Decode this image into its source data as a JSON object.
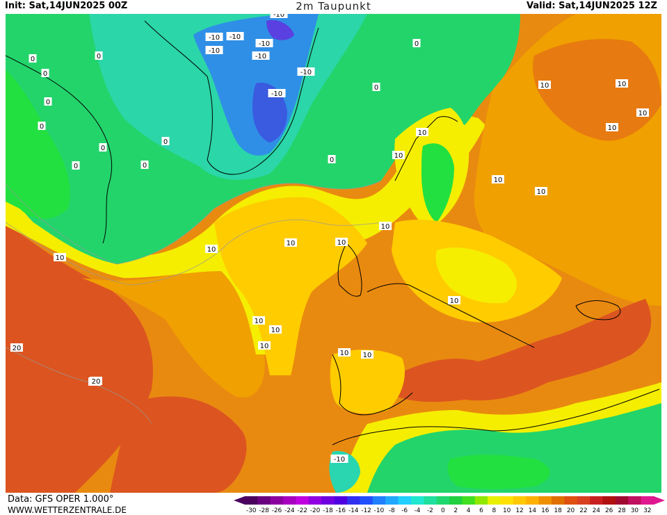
{
  "header": {
    "init": "Init: Sat,14JUN2025 00Z",
    "title": "2m Taupunkt",
    "valid": "Valid: Sat,14JUN2025 12Z"
  },
  "footer": {
    "data_source": "Data: GFS OPER 1.000°",
    "website": "WWW.WETTERZENTRALE.DE"
  },
  "legend": {
    "ticks": [
      "-30",
      "-28",
      "-26",
      "-24",
      "-22",
      "-20",
      "-18",
      "-16",
      "-14",
      "-12",
      "-10",
      "-8",
      "-6",
      "-4",
      "-2",
      "0",
      "2",
      "4",
      "6",
      "8",
      "10",
      "12",
      "14",
      "16",
      "18",
      "20",
      "22",
      "24",
      "26",
      "28",
      "30",
      "32"
    ],
    "colors": [
      "#4b0060",
      "#6a0080",
      "#8c00a0",
      "#a800c0",
      "#c000e0",
      "#9000e0",
      "#7000e0",
      "#5000e0",
      "#3030f0",
      "#2050ff",
      "#2080ff",
      "#20a8ff",
      "#20d0ff",
      "#20e8d0",
      "#20e0a0",
      "#20d870",
      "#20d040",
      "#40e020",
      "#90e800",
      "#e8f000",
      "#ffe000",
      "#ffc800",
      "#ffb000",
      "#f09000",
      "#e07000",
      "#e05010",
      "#d84020",
      "#c82020",
      "#b01010",
      "#a00830",
      "#c01060",
      "#e01890"
    ]
  },
  "map_colors": {
    "greenland_cold": "#2f7fe6",
    "greenland_very_cold": "#3a5ae0",
    "cold_teal": "#29d6b0",
    "green": "#23d46b",
    "bright_green": "#22e040",
    "yellow": "#f5f000",
    "gold": "#ffcf00",
    "orange": "#f6a800",
    "dark_orange": "#e77a10",
    "red_orange": "#dc5520",
    "coastline": "#000000",
    "contour": "#999999"
  },
  "contour_labels": [
    {
      "text": "0"
    },
    {
      "text": "0"
    },
    {
      "text": "0"
    },
    {
      "text": "0"
    },
    {
      "text": "0"
    },
    {
      "text": "0"
    },
    {
      "text": "0"
    },
    {
      "text": "0"
    },
    {
      "text": "0"
    },
    {
      "text": "0"
    },
    {
      "text": "0"
    },
    {
      "text": "0"
    },
    {
      "text": "-10"
    },
    {
      "text": "-10"
    },
    {
      "text": "-10"
    },
    {
      "text": "-10"
    },
    {
      "text": "-10"
    },
    {
      "text": "-10"
    },
    {
      "text": "-10"
    },
    {
      "text": "-10"
    },
    {
      "text": "-10"
    },
    {
      "text": "10"
    },
    {
      "text": "10"
    },
    {
      "text": "10"
    },
    {
      "text": "10"
    },
    {
      "text": "10"
    },
    {
      "text": "10"
    },
    {
      "text": "10"
    },
    {
      "text": "10"
    },
    {
      "text": "10"
    },
    {
      "text": "10"
    },
    {
      "text": "10"
    },
    {
      "text": "10"
    },
    {
      "text": "10"
    },
    {
      "text": "10"
    },
    {
      "text": "10"
    },
    {
      "text": "10"
    },
    {
      "text": "10"
    },
    {
      "text": "10"
    },
    {
      "text": "10"
    },
    {
      "text": "10"
    },
    {
      "text": "20"
    },
    {
      "text": "20"
    }
  ]
}
